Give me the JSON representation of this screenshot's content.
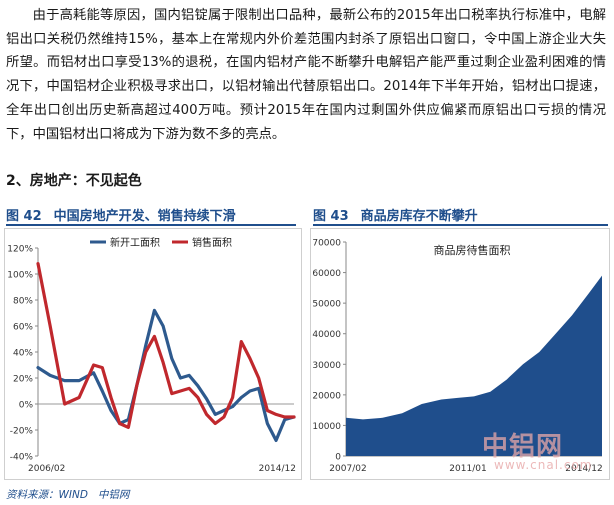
{
  "article": {
    "paragraph": "由于高耗能等原因，国内铝锭属于限制出口品种，最新公布的2015年出口税率执行标准中，电解铝出口关税仍然维持15%，基本上在常规内外价差范围内封杀了原铝出口窗口，令中国上游企业大失所望。而铝材出口享受13%的退税，在国内铝材产能不断攀升电解铝产能严重过剩企业盈利困难的情况下，中国铝材企业积极寻求出口，以铝材输出代替原铝出口。2014年下半年开始，铝材出口提速，全年出口创出历史新高超过400万吨。预计2015年在国内过剩国外供应偏紧而原铝出口亏损的情况下，中国铝材出口将成为下游为数不多的亮点。",
    "section_heading": "2、房地产：不见起色"
  },
  "figures": [
    {
      "number": "图 42",
      "title": "中国房地产开发、销售持续下滑"
    },
    {
      "number": "图 43",
      "title": "商品房库存不断攀升"
    }
  ],
  "source_note": {
    "label": "资料来源：WIND",
    "org": "中铝网"
  },
  "watermark": {
    "brand": "中铝网",
    "url": "www.cnal.com"
  },
  "colors": {
    "blue_series": "#2e5a8e",
    "red_series": "#c0282d",
    "area_fill": "#1f4e8c",
    "title_blue": "#1f4e8c"
  },
  "chart_data": [
    {
      "type": "line",
      "title": "",
      "legend": "top-center",
      "xlabel": "",
      "ylabel": "",
      "x_tick_labels": [
        "2006/02",
        "2014/12"
      ],
      "y_tick_labels": [
        "-40%",
        "-20%",
        "0%",
        "20%",
        "40%",
        "60%",
        "80%",
        "100%",
        "120%"
      ],
      "ylim": [
        -40,
        120
      ],
      "grid": false,
      "x": [
        2006.08,
        2006.5,
        2007.0,
        2007.5,
        2008.0,
        2008.3,
        2008.6,
        2008.9,
        2009.2,
        2009.5,
        2009.8,
        2010.1,
        2010.4,
        2010.7,
        2011.0,
        2011.3,
        2011.6,
        2011.9,
        2012.2,
        2012.5,
        2012.8,
        2013.1,
        2013.4,
        2013.7,
        2014.0,
        2014.3,
        2014.6,
        2014.92
      ],
      "series": [
        {
          "name": "新开工面积",
          "color": "#2e5a8e",
          "values": [
            28,
            22,
            18,
            18,
            24,
            10,
            -5,
            -15,
            -12,
            15,
            45,
            72,
            60,
            35,
            20,
            22,
            14,
            4,
            -8,
            -5,
            -2,
            5,
            10,
            12,
            -15,
            -28,
            -12,
            -10
          ]
        },
        {
          "name": "销售面积",
          "color": "#c0282d",
          "values": [
            108,
            60,
            0,
            5,
            30,
            28,
            5,
            -15,
            -18,
            15,
            40,
            52,
            32,
            8,
            10,
            12,
            5,
            -8,
            -15,
            -10,
            5,
            48,
            35,
            20,
            -5,
            -8,
            -10,
            -10
          ]
        }
      ]
    },
    {
      "type": "area",
      "title": "商品房待售面积",
      "legend": "",
      "xlabel": "",
      "ylabel": "",
      "x_tick_labels": [
        "2007/02",
        "2011/01",
        "2014/12"
      ],
      "y_tick_labels": [
        "0",
        "10000",
        "20000",
        "30000",
        "40000",
        "50000",
        "60000",
        "70000"
      ],
      "ylim": [
        0,
        70000
      ],
      "grid": false,
      "x": [
        2007.08,
        2007.6,
        2008.2,
        2008.8,
        2009.4,
        2010.0,
        2010.5,
        2011.0,
        2011.5,
        2012.0,
        2012.5,
        2013.0,
        2013.5,
        2014.0,
        2014.5,
        2014.92
      ],
      "series": [
        {
          "name": "商品房待售面积",
          "color": "#1f4e8c",
          "values": [
            12500,
            12000,
            12500,
            14000,
            17000,
            18500,
            19000,
            19500,
            21000,
            25000,
            30000,
            34000,
            40000,
            46000,
            53000,
            59000
          ]
        }
      ]
    }
  ]
}
